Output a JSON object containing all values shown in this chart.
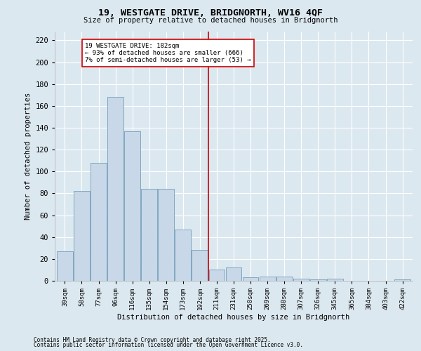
{
  "title_line1": "19, WESTGATE DRIVE, BRIDGNORTH, WV16 4QF",
  "title_line2": "Size of property relative to detached houses in Bridgnorth",
  "xlabel": "Distribution of detached houses by size in Bridgnorth",
  "ylabel": "Number of detached properties",
  "categories": [
    "39sqm",
    "58sqm",
    "77sqm",
    "96sqm",
    "116sqm",
    "135sqm",
    "154sqm",
    "173sqm",
    "192sqm",
    "211sqm",
    "231sqm",
    "250sqm",
    "269sqm",
    "288sqm",
    "307sqm",
    "326sqm",
    "345sqm",
    "365sqm",
    "384sqm",
    "403sqm",
    "422sqm"
  ],
  "values": [
    27,
    82,
    108,
    168,
    137,
    84,
    84,
    47,
    28,
    10,
    12,
    3,
    4,
    4,
    2,
    1,
    2,
    0,
    0,
    0,
    1
  ],
  "bar_color": "#c8d8e8",
  "bar_edge_color": "#6090b0",
  "vline_x": 8.5,
  "vline_color": "#cc0000",
  "annotation_text": "19 WESTGATE DRIVE: 182sqm\n← 93% of detached houses are smaller (666)\n7% of semi-detached houses are larger (53) →",
  "annotation_box_color": "#cc0000",
  "ylim": [
    0,
    228
  ],
  "yticks": [
    0,
    20,
    40,
    60,
    80,
    100,
    120,
    140,
    160,
    180,
    200,
    220
  ],
  "bg_color": "#dce8f0",
  "plot_bg_color": "#dce8f0",
  "grid_color": "#ffffff",
  "footer_line1": "Contains HM Land Registry data © Crown copyright and database right 2025.",
  "footer_line2": "Contains public sector information licensed under the Open Government Licence v3.0."
}
